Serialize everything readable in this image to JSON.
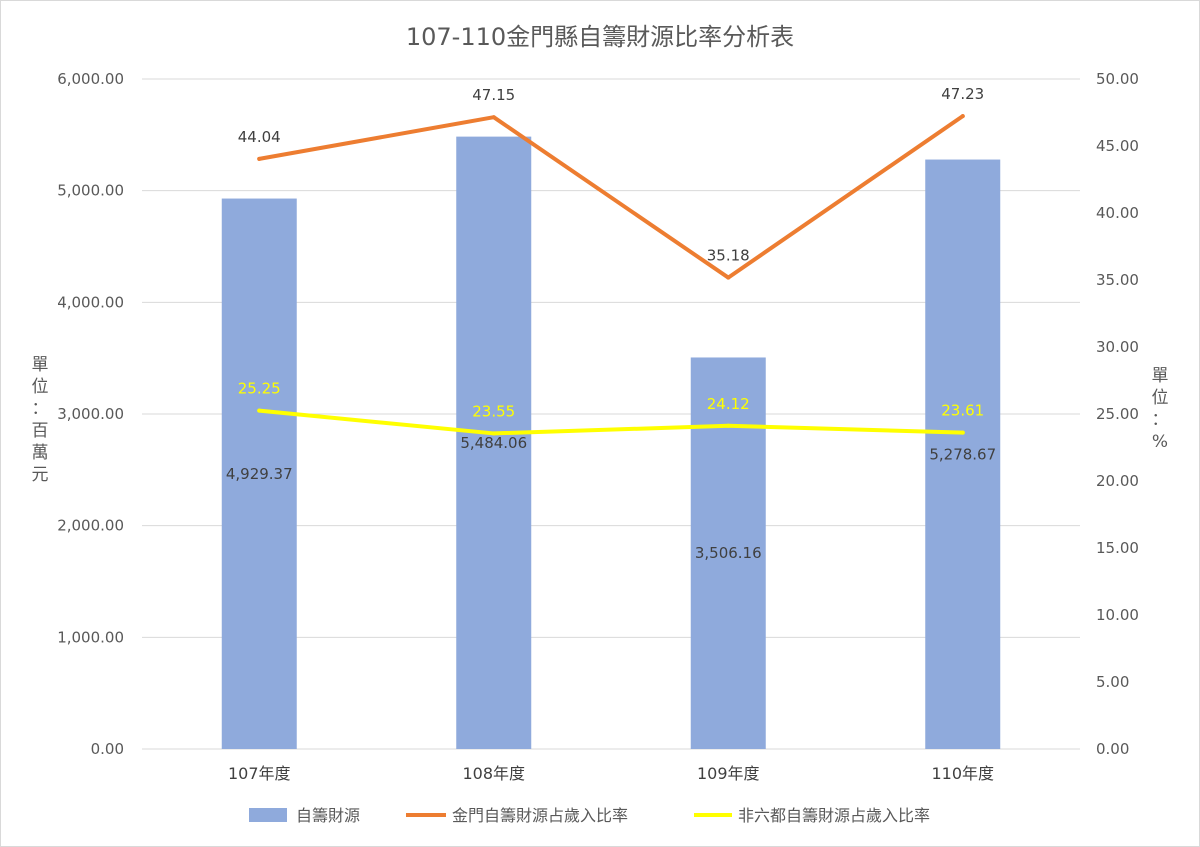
{
  "chart_data": {
    "type": "bar",
    "title": "107-110金門縣自籌財源比率分析表",
    "categories": [
      "107年度",
      "108年度",
      "109年度",
      "110年度"
    ],
    "y_left": {
      "label": "單位：百萬元",
      "range": [
        0,
        6000
      ],
      "ticks": [
        "0.00",
        "1,000.00",
        "2,000.00",
        "3,000.00",
        "4,000.00",
        "5,000.00",
        "6,000.00"
      ]
    },
    "y_right": {
      "label": "單位：%",
      "range": [
        0,
        50
      ],
      "ticks": [
        "0.00",
        "5.00",
        "10.00",
        "15.00",
        "20.00",
        "25.00",
        "30.00",
        "35.00",
        "40.00",
        "45.00",
        "50.00"
      ]
    },
    "grid": true,
    "legend_position": "bottom",
    "series": [
      {
        "name": "自籌財源",
        "type": "bar",
        "axis": "left",
        "color": "#8faadc",
        "values": [
          4929.37,
          5484.06,
          3506.16,
          5278.67
        ],
        "labels": [
          "4,929.37",
          "5,484.06",
          "3,506.16",
          "5,278.67"
        ]
      },
      {
        "name": "金門自籌財源占歲入比率",
        "type": "line",
        "axis": "right",
        "color": "#ed7d31",
        "values": [
          44.04,
          47.15,
          35.18,
          47.23
        ],
        "labels": [
          "44.04",
          "47.15",
          "35.18",
          "47.23"
        ]
      },
      {
        "name": "非六都自籌財源占歲入比率",
        "type": "line",
        "axis": "right",
        "color": "#ffff00",
        "values": [
          25.25,
          23.55,
          24.12,
          23.61
        ],
        "labels": [
          "25.25",
          "23.55",
          "24.12",
          "23.61"
        ]
      }
    ]
  }
}
